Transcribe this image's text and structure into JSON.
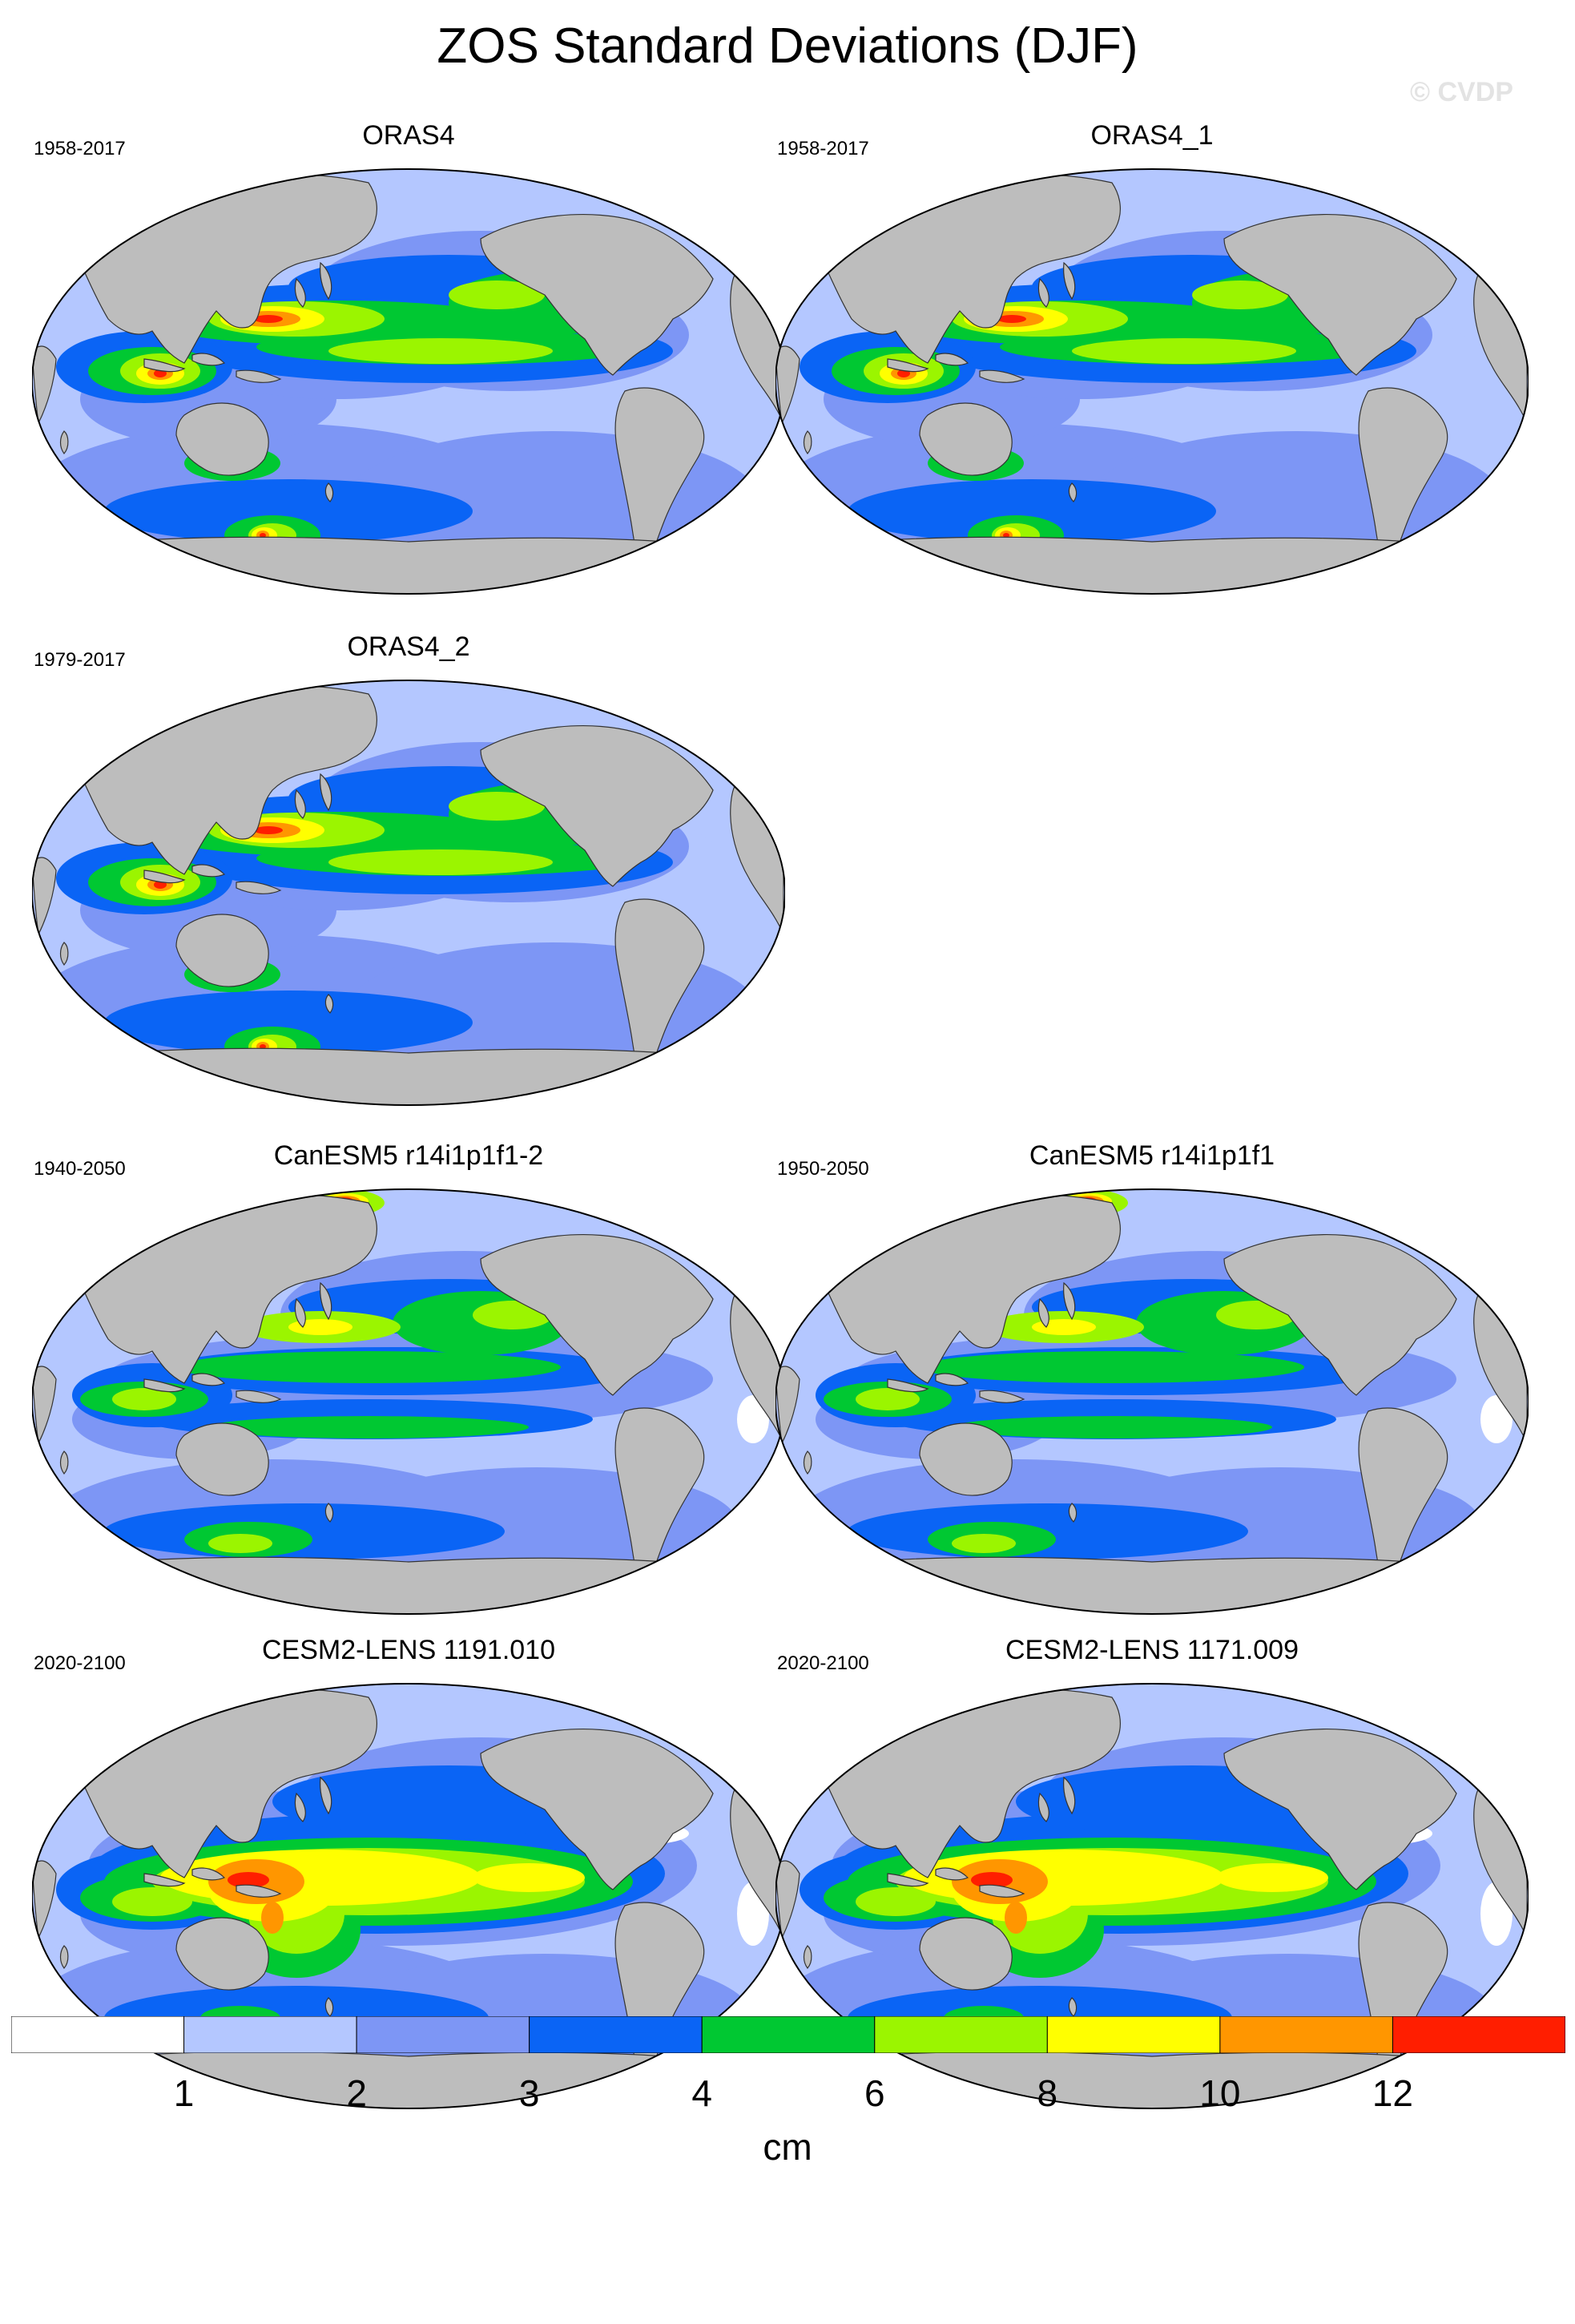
{
  "title": "ZOS Standard Deviations (DJF)",
  "watermark": "© CVDP",
  "colors": {
    "land": "#bdbdbd",
    "levels": [
      "#ffffff",
      "#b4c7ff",
      "#7d96f5",
      "#0a64f5",
      "#00c832",
      "#9bf500",
      "#ffff00",
      "#ff9600",
      "#ff1e00"
    ]
  },
  "panels": [
    {
      "title": "ORAS4",
      "period": "1958-2017",
      "variant": "oras"
    },
    {
      "title": "ORAS4_1",
      "period": "1958-2017",
      "variant": "oras"
    },
    {
      "title": "ORAS4_2",
      "period": "1979-2017",
      "variant": "oras"
    },
    {
      "title": "CanESM5 r14i1p1f1-2",
      "period": "1940-2050",
      "variant": "canesm"
    },
    {
      "title": "CanESM5 r14i1p1f1",
      "period": "1950-2050",
      "variant": "canesm"
    },
    {
      "title": "CESM2-LENS 1191.010",
      "period": "2020-2100",
      "variant": "cesm"
    },
    {
      "title": "CESM2-LENS 1171.009",
      "period": "2020-2100",
      "variant": "cesm"
    }
  ],
  "colorbar": {
    "labels": [
      "1",
      "2",
      "3",
      "4",
      "6",
      "8",
      "10",
      "12"
    ],
    "units": "cm"
  }
}
